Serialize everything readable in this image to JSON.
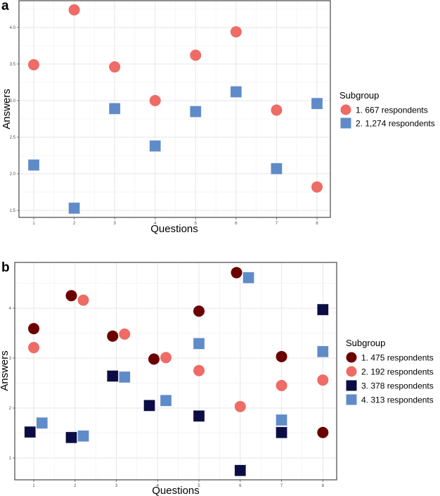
{
  "chart_data": [
    {
      "type": "scatter",
      "panel": "a",
      "title": "",
      "xlabel": "Questions",
      "ylabel": "Answers",
      "xlim": [
        0.635,
        8.33
      ],
      "ylim": [
        1.404,
        4.365
      ],
      "xticks": [
        1,
        2,
        3,
        4,
        5,
        6,
        7,
        8
      ],
      "xtick_labels": [
        "1",
        "2",
        "3",
        "4",
        "5",
        "6",
        "7",
        "8"
      ],
      "yticks": [
        1.5,
        2.0,
        2.5,
        3.0,
        3.5,
        4.0
      ],
      "ytick_labels": [
        "1.5",
        "2.0",
        "2.5",
        "3.0",
        "3.5",
        "4.0"
      ],
      "grid": true,
      "legend_title": "Subgroup",
      "legend_position": "right",
      "series": [
        {
          "name": "1. 667 respondents",
          "shape": "circle",
          "color": "#ef6b66",
          "x": [
            1,
            2,
            3,
            4,
            5,
            6,
            7,
            8
          ],
          "y": [
            3.49,
            4.24,
            3.46,
            3.0,
            3.62,
            3.94,
            2.87,
            1.82
          ]
        },
        {
          "name": "2. 1,274 respondents",
          "shape": "square",
          "color": "#5f8bc8",
          "x": [
            1,
            2,
            3,
            4,
            5,
            6,
            7,
            8
          ],
          "y": [
            2.12,
            1.53,
            2.89,
            2.38,
            2.85,
            3.12,
            2.07,
            2.96
          ]
        }
      ]
    },
    {
      "type": "scatter",
      "panel": "b",
      "title": "",
      "xlabel": "Questions",
      "ylabel": "Answers",
      "xlim": [
        0.54,
        8.335
      ],
      "ylim": [
        0.563,
        4.915
      ],
      "xticks": [
        1,
        2,
        3,
        4,
        5,
        6,
        7,
        8
      ],
      "xtick_labels": [
        "1",
        "2",
        "3",
        "4",
        "5",
        "6",
        "7",
        "8"
      ],
      "yticks": [
        1,
        2,
        3,
        4
      ],
      "ytick_labels": [
        "1",
        "2",
        "3",
        "4"
      ],
      "grid": true,
      "legend_title": "Subgroup",
      "legend_position": "right",
      "series": [
        {
          "name": "1. 475 respondents",
          "shape": "circle",
          "color": "#6b0000",
          "x": [
            1.0,
            1.91,
            2.91,
            3.91,
            5.0,
            5.91,
            7.0,
            8.0
          ],
          "y": [
            3.59,
            4.25,
            3.44,
            2.98,
            3.94,
            4.71,
            3.03,
            1.51
          ]
        },
        {
          "name": "2. 192 respondents",
          "shape": "circle",
          "color": "#ef6b66",
          "x": [
            1.0,
            2.2,
            3.2,
            4.2,
            5.0,
            6.0,
            7.0,
            8.0
          ],
          "y": [
            3.21,
            4.16,
            3.48,
            3.01,
            2.75,
            2.03,
            2.45,
            2.56
          ]
        },
        {
          "name": "3. 378 respondents",
          "shape": "square",
          "color": "#0c0c45",
          "x": [
            0.91,
            1.91,
            2.91,
            3.8,
            5.0,
            6.0,
            7.0,
            8.0
          ],
          "y": [
            1.52,
            1.41,
            2.64,
            2.05,
            1.84,
            0.75,
            1.51,
            3.97
          ]
        },
        {
          "name": "4. 313 respondents",
          "shape": "square",
          "color": "#5f8bc8",
          "x": [
            1.2,
            2.2,
            3.2,
            4.2,
            5.0,
            6.2,
            7.0,
            8.0
          ],
          "y": [
            1.7,
            1.44,
            2.62,
            2.15,
            3.29,
            4.61,
            1.76,
            3.13
          ]
        }
      ]
    }
  ],
  "panels": {
    "a": {
      "label": "a"
    },
    "b": {
      "label": "b"
    }
  }
}
